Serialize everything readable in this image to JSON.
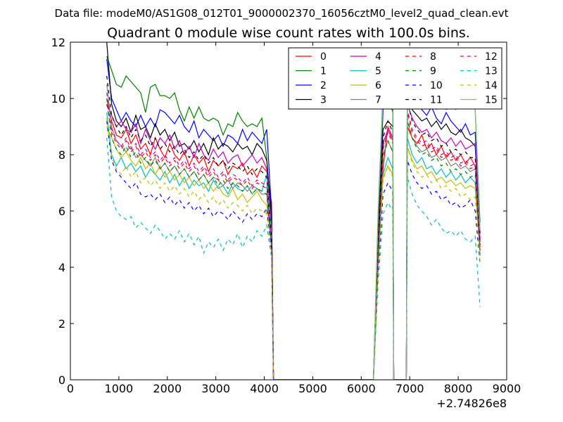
{
  "chart_data": {
    "type": "line",
    "suptitle": "Data file: modeM0/AS1G08_012T01_9000002370_16056cztM0_level2_quad_clean.evt",
    "title": "Quadrant 0 module wise count rates with 100.0s bins.",
    "xlabel": "",
    "ylabel": "",
    "x_offset_label": "+2.74826e8",
    "xlim": [
      0,
      9000
    ],
    "ylim": [
      0,
      12
    ],
    "x_ticks": [
      0,
      1000,
      2000,
      3000,
      4000,
      5000,
      6000,
      7000,
      8000,
      9000
    ],
    "y_ticks": [
      0,
      2,
      4,
      6,
      8,
      10,
      12
    ],
    "segments": [
      [
        750,
        4150
      ],
      [
        4250,
        6150
      ],
      [
        6250,
        6650
      ],
      [
        6950,
        8450
      ]
    ],
    "gap_series": [
      [
        4150,
        4250
      ],
      [
        6150,
        6250
      ],
      [
        6650,
        6750
      ],
      [
        6850,
        6950
      ]
    ],
    "x_start": 750,
    "x_step": 100,
    "legend": {
      "location": "top-right",
      "columns": 4
    },
    "series": [
      {
        "name": "0",
        "color": "#ff0000",
        "dash": "solid",
        "first_seg": [
          10.0,
          9.2,
          8.7,
          8.6,
          8.9,
          8.4,
          8.7,
          8.2,
          8.4,
          8.0,
          8.6,
          8.2,
          7.9,
          8.4,
          8.0,
          7.8,
          8.1,
          7.6,
          8.0,
          7.7,
          7.9,
          7.4,
          7.8,
          7.6,
          7.8,
          7.3,
          7.6,
          7.5,
          7.7,
          7.3,
          7.5,
          7.2,
          7.6,
          7.4,
          6.3
        ],
        "second_seg": [
          0.0,
          4.0,
          7.5,
          9.0,
          8.6
        ],
        "third_seg": [
          9.0,
          8.6,
          8.4,
          8.7,
          8.2,
          8.4,
          8.0,
          8.3,
          7.9,
          8.1,
          7.8,
          8.0,
          7.7,
          7.9,
          7.6,
          5.0
        ]
      },
      {
        "name": "1",
        "color": "#008000",
        "dash": "solid",
        "first_seg": [
          11.5,
          11.0,
          10.5,
          10.4,
          10.8,
          10.6,
          10.4,
          10.2,
          9.5,
          10.4,
          10.5,
          10.1,
          10.1,
          10.0,
          10.2,
          9.6,
          9.2,
          9.7,
          9.3,
          9.7,
          9.3,
          9.2,
          9.3,
          9.2,
          8.7,
          9.1,
          9.0,
          9.5,
          9.2,
          9.0,
          9.1,
          9.0,
          9.3,
          7.9,
          5.5
        ],
        "second_seg": [
          0.0,
          6.0,
          10.2,
          11.6,
          10.3
        ],
        "third_seg": [
          11.5,
          10.8,
          10.3,
          10.6,
          10.1,
          10.4,
          9.9,
          10.2,
          9.8,
          9.8,
          9.7,
          10.0,
          10.1,
          9.9,
          9.6,
          5.6
        ]
      },
      {
        "name": "2",
        "color": "#0000ff",
        "dash": "solid",
        "first_seg": [
          11.4,
          10.0,
          9.6,
          9.2,
          9.5,
          9.2,
          9.0,
          9.4,
          9.0,
          9.3,
          9.0,
          9.6,
          9.5,
          9.3,
          9.1,
          9.4,
          9.0,
          8.8,
          9.2,
          8.6,
          8.9,
          8.7,
          8.5,
          8.7,
          8.3,
          8.7,
          8.6,
          8.4,
          8.9,
          8.5,
          8.8,
          8.6,
          8.4,
          8.9,
          6.0
        ],
        "second_seg": [
          0.0,
          5.0,
          9.6,
          10.2,
          9.5
        ],
        "third_seg": [
          11.0,
          10.2,
          9.8,
          9.6,
          9.4,
          9.7,
          9.3,
          9.1,
          9.5,
          9.2,
          9.0,
          8.8,
          9.1,
          8.7,
          8.8,
          5.3
        ]
      },
      {
        "name": "3",
        "color": "#000000",
        "dash": "solid",
        "first_seg": [
          12.0,
          9.8,
          9.2,
          9.0,
          9.3,
          8.8,
          9.4,
          8.9,
          9.0,
          8.6,
          9.1,
          8.7,
          8.9,
          8.5,
          8.8,
          8.3,
          8.4,
          8.2,
          8.5,
          8.1,
          8.4,
          8.0,
          8.6,
          8.2,
          8.4,
          8.3,
          8.1,
          8.4,
          8.2,
          8.3,
          8.0,
          8.4,
          8.2,
          7.8,
          5.8
        ],
        "second_seg": [
          0.0,
          5.5,
          8.9,
          9.2,
          9.0
        ],
        "third_seg": [
          10.4,
          9.6,
          9.4,
          9.2,
          9.3,
          9.0,
          9.2,
          8.9,
          9.1,
          8.8,
          8.7,
          8.9,
          8.6,
          8.5,
          8.3,
          5.2
        ]
      },
      {
        "name": "4",
        "color": "#bf00bf",
        "dash": "solid",
        "first_seg": [
          9.8,
          9.4,
          9.0,
          9.2,
          8.9,
          8.8,
          9.1,
          8.4,
          8.9,
          8.5,
          8.2,
          8.6,
          8.4,
          8.7,
          8.2,
          8.5,
          8.0,
          8.3,
          7.9,
          8.4,
          8.0,
          7.8,
          8.2,
          7.9,
          8.1,
          7.7,
          7.9,
          8.0,
          7.6,
          7.8,
          8.0,
          7.7,
          7.9,
          7.5,
          5.4
        ],
        "second_seg": [
          0.0,
          4.5,
          8.4,
          8.9,
          8.5
        ],
        "third_seg": [
          9.8,
          9.3,
          9.0,
          8.8,
          8.9,
          8.6,
          8.8,
          8.5,
          8.4,
          8.6,
          8.3,
          8.5,
          8.2,
          8.3,
          8.4,
          4.9
        ]
      },
      {
        "name": "5",
        "color": "#00bfbf",
        "dash": "solid",
        "first_seg": [
          9.5,
          8.0,
          7.6,
          7.9,
          7.5,
          7.7,
          7.4,
          7.6,
          7.2,
          7.5,
          7.3,
          7.1,
          7.4,
          7.0,
          7.3,
          6.9,
          7.2,
          6.8,
          7.1,
          6.9,
          7.0,
          6.7,
          7.1,
          6.8,
          6.9,
          6.6,
          7.0,
          6.8,
          6.7,
          6.9,
          6.6,
          6.8,
          6.7,
          7.3,
          5.2
        ],
        "second_seg": [
          0.0,
          4.2,
          7.3,
          7.9,
          7.5
        ],
        "third_seg": [
          8.6,
          8.0,
          7.7,
          7.9,
          7.5,
          7.6,
          7.3,
          7.5,
          7.2,
          7.4,
          7.1,
          7.3,
          7.0,
          7.2,
          7.0,
          4.6
        ]
      },
      {
        "name": "6",
        "color": "#bfbf00",
        "dash": "solid",
        "first_seg": [
          9.0,
          8.6,
          8.2,
          7.9,
          8.1,
          7.8,
          7.6,
          7.9,
          7.5,
          7.7,
          7.3,
          7.6,
          7.2,
          7.4,
          7.1,
          7.3,
          7.0,
          7.2,
          6.9,
          7.1,
          6.8,
          7.0,
          6.7,
          6.9,
          6.6,
          6.5,
          6.8,
          6.4,
          6.6,
          6.3,
          6.5,
          6.7,
          6.4,
          6.2,
          4.9
        ],
        "second_seg": [
          0.0,
          4.0,
          7.2,
          7.6,
          7.3
        ],
        "third_seg": [
          8.3,
          7.8,
          7.5,
          7.6,
          7.3,
          7.4,
          7.1,
          7.2,
          7.0,
          7.1,
          6.9,
          7.0,
          6.8,
          6.9,
          6.8,
          4.5
        ]
      },
      {
        "name": "7",
        "color": "#808080",
        "dash": "solid",
        "first_seg": [
          10.5,
          9.0,
          8.5,
          8.3,
          8.1,
          8.3,
          7.9,
          8.0,
          7.8,
          7.6,
          7.9,
          7.5,
          7.7,
          7.4,
          7.6,
          7.3,
          7.5,
          7.2,
          7.4,
          7.1,
          7.3,
          7.0,
          7.2,
          7.1,
          6.9,
          7.1,
          6.8,
          7.0,
          6.9,
          6.7,
          6.9,
          6.8,
          6.6,
          6.6,
          4.8
        ],
        "second_seg": [
          0.0,
          4.3,
          8.0,
          8.5,
          8.1
        ],
        "third_seg": [
          9.2,
          8.6,
          8.3,
          8.1,
          8.2,
          7.9,
          8.0,
          7.8,
          7.9,
          7.6,
          7.7,
          7.5,
          7.6,
          7.4,
          7.5,
          4.6
        ]
      },
      {
        "name": "8",
        "color": "#ff0000",
        "dash": "dashed",
        "first_seg": [
          9.8,
          8.8,
          8.4,
          8.2,
          8.5,
          8.1,
          8.3,
          7.9,
          8.1,
          7.8,
          8.0,
          7.7,
          7.9,
          7.6,
          7.8,
          7.5,
          7.7,
          7.4,
          7.6,
          7.3,
          7.5,
          7.2,
          7.4,
          7.1,
          7.3,
          7.0,
          7.2,
          7.1,
          6.9,
          7.1,
          6.8,
          7.0,
          6.9,
          6.8,
          4.9
        ],
        "second_seg": [
          0.0,
          4.6,
          8.2,
          8.8,
          8.4
        ],
        "third_seg": [
          9.5,
          8.8,
          8.5,
          8.3,
          8.4,
          8.1,
          8.2,
          7.9,
          8.0,
          7.8,
          7.9,
          7.6,
          7.7,
          7.5,
          7.6,
          4.7
        ]
      },
      {
        "name": "9",
        "color": "#008000",
        "dash": "dashed",
        "first_seg": [
          10.0,
          8.6,
          8.2,
          8.0,
          8.3,
          7.9,
          8.1,
          7.7,
          7.9,
          7.6,
          7.8,
          7.5,
          7.7,
          7.4,
          7.6,
          7.3,
          7.5,
          7.2,
          7.4,
          7.1,
          7.3,
          7.0,
          7.2,
          6.9,
          7.1,
          6.8,
          7.0,
          6.9,
          6.7,
          6.9,
          6.6,
          6.8,
          6.7,
          6.6,
          4.7
        ],
        "second_seg": [
          0.0,
          4.4,
          7.9,
          8.5,
          8.1
        ],
        "third_seg": [
          9.3,
          8.6,
          8.2,
          8.0,
          8.1,
          7.8,
          7.9,
          7.6,
          7.7,
          7.4,
          7.5,
          7.3,
          7.4,
          7.2,
          7.3,
          4.4
        ]
      },
      {
        "name": "10",
        "color": "#0000ff",
        "dash": "dashed",
        "first_seg": [
          9.2,
          7.8,
          7.4,
          7.2,
          7.0,
          6.8,
          7.0,
          6.6,
          6.5,
          6.6,
          6.4,
          6.6,
          6.3,
          6.5,
          6.2,
          6.4,
          6.1,
          6.3,
          6.0,
          6.2,
          5.9,
          6.1,
          5.8,
          6.0,
          5.9,
          5.7,
          6.0,
          5.8,
          5.6,
          5.9,
          5.7,
          5.9,
          5.8,
          6.1,
          4.5
        ],
        "second_seg": [
          0.0,
          3.8,
          6.6,
          7.0,
          6.7
        ],
        "third_seg": [
          7.8,
          7.3,
          7.0,
          6.8,
          6.9,
          6.6,
          6.7,
          6.4,
          6.5,
          6.2,
          6.3,
          6.1,
          6.2,
          6.4,
          6.0,
          4.1
        ]
      },
      {
        "name": "11",
        "color": "#000000",
        "dash": "dashed",
        "first_seg": [
          10.8,
          9.4,
          9.0,
          8.7,
          9.0,
          8.6,
          8.9,
          8.5,
          8.7,
          8.3,
          8.6,
          8.2,
          8.4,
          8.1,
          8.3,
          8.0,
          8.2,
          7.9,
          8.1,
          7.8,
          8.0,
          7.7,
          7.9,
          7.6,
          7.8,
          7.5,
          7.7,
          7.6,
          7.4,
          7.6,
          7.3,
          7.5,
          7.4,
          7.2,
          5.0
        ],
        "second_seg": [
          0.0,
          4.8,
          8.6,
          9.2,
          8.8
        ],
        "third_seg": [
          9.9,
          9.2,
          8.9,
          8.7,
          8.8,
          8.5,
          8.6,
          8.3,
          8.4,
          8.1,
          8.2,
          8.0,
          8.1,
          7.9,
          7.9,
          4.8
        ]
      },
      {
        "name": "12",
        "color": "#bf00bf",
        "dash": "dashed",
        "first_seg": [
          10.2,
          8.9,
          8.5,
          8.3,
          8.6,
          8.2,
          8.4,
          8.0,
          8.2,
          7.9,
          8.1,
          7.8,
          8.0,
          7.7,
          7.9,
          7.6,
          7.8,
          7.5,
          7.7,
          7.4,
          7.6,
          7.3,
          7.5,
          7.2,
          7.4,
          7.1,
          7.3,
          7.2,
          7.0,
          7.2,
          6.9,
          7.1,
          7.0,
          6.9,
          4.8
        ],
        "second_seg": [
          0.0,
          4.6,
          8.3,
          8.9,
          8.5
        ],
        "third_seg": [
          9.6,
          8.9,
          8.6,
          8.4,
          8.5,
          8.2,
          8.3,
          8.0,
          8.1,
          7.9,
          8.0,
          7.7,
          7.8,
          7.6,
          7.7,
          4.6
        ]
      },
      {
        "name": "13",
        "color": "#00bfbf",
        "dash": "dashed",
        "first_seg": [
          8.6,
          6.5,
          6.0,
          5.8,
          5.7,
          5.8,
          5.4,
          5.6,
          5.4,
          5.2,
          5.5,
          5.3,
          5.0,
          5.2,
          5.0,
          5.3,
          4.9,
          5.2,
          4.8,
          5.1,
          4.5,
          4.9,
          4.7,
          5.0,
          4.6,
          5.0,
          4.8,
          5.2,
          4.7,
          5.1,
          4.9,
          5.3,
          5.1,
          5.5,
          4.3
        ],
        "second_seg": [
          0.0,
          3.5,
          5.9,
          6.3,
          6.0
        ],
        "third_seg": [
          7.2,
          6.6,
          6.2,
          6.0,
          5.8,
          5.5,
          5.7,
          5.4,
          5.2,
          5.3,
          5.1,
          5.3,
          5.0,
          4.9,
          5.1,
          2.6
        ]
      },
      {
        "name": "14",
        "color": "#bfbf00",
        "dash": "dashed",
        "first_seg": [
          9.3,
          7.9,
          7.5,
          7.3,
          7.6,
          7.2,
          7.4,
          7.0,
          7.2,
          6.9,
          7.1,
          6.8,
          7.0,
          6.7,
          6.9,
          6.6,
          6.8,
          6.5,
          6.7,
          6.4,
          6.6,
          6.3,
          6.5,
          6.2,
          6.4,
          6.1,
          6.3,
          6.2,
          6.0,
          6.2,
          5.9,
          6.1,
          6.0,
          5.9,
          4.4
        ],
        "second_seg": [
          0.0,
          4.0,
          7.1,
          7.6,
          7.2
        ],
        "third_seg": [
          8.3,
          7.7,
          7.4,
          7.2,
          7.3,
          7.0,
          7.1,
          6.8,
          6.9,
          6.7,
          6.8,
          6.5,
          6.6,
          6.4,
          6.5,
          4.2
        ]
      },
      {
        "name": "15",
        "color": "#7fc07f",
        "dash": "solid",
        "first_seg": [],
        "second_seg": [
          0.0,
          5.8,
          10.0,
          11.6,
          10.2
        ],
        "third_seg": [
          11.5,
          10.5,
          10.0,
          9.9,
          9.8,
          9.9,
          9.6,
          9.8,
          9.6,
          9.7,
          9.6,
          9.8,
          9.8,
          10.0,
          9.6,
          5.3
        ]
      }
    ]
  }
}
